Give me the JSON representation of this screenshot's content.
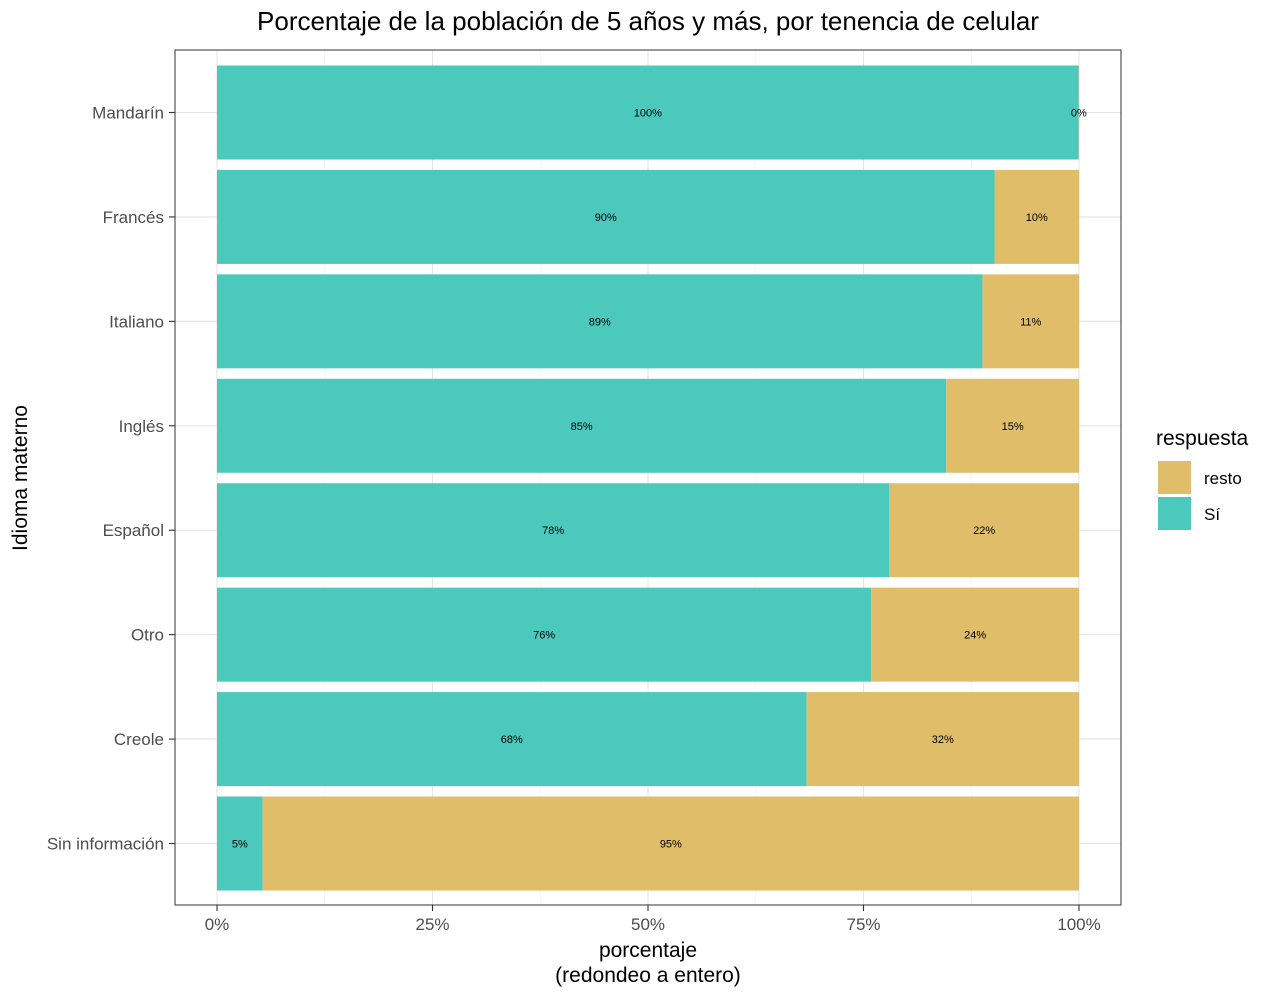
{
  "chart_data": {
    "type": "bar",
    "orientation": "horizontal",
    "stacked": true,
    "title": "Porcentaje de la población de 5 años y más, por tenencia de celular",
    "xlabel_line1": "porcentaje",
    "xlabel_line2": "(redondeo a entero)",
    "ylabel": "Idioma materno",
    "xlim": [
      0,
      1
    ],
    "x_ticks": [
      {
        "value": 0,
        "label": "0%"
      },
      {
        "value": 0.25,
        "label": "25%"
      },
      {
        "value": 0.5,
        "label": "50%"
      },
      {
        "value": 0.75,
        "label": "75%"
      },
      {
        "value": 1,
        "label": "100%"
      }
    ],
    "grid": true,
    "legend_position": "right",
    "categories": [
      "Mandarín",
      "Francés",
      "Italiano",
      "Inglés",
      "Español",
      "Otro",
      "Creole",
      "Sin información"
    ],
    "series": [
      {
        "name": "Sí",
        "color": "#4CC9BD",
        "values": [
          0.9996,
          0.902,
          0.888,
          0.846,
          0.78,
          0.759,
          0.684,
          0.053
        ],
        "labels": [
          "100%",
          "90%",
          "89%",
          "85%",
          "78%",
          "76%",
          "68%",
          "5%"
        ]
      },
      {
        "name": "resto",
        "color": "#E0BE69",
        "values": [
          0.0004,
          0.098,
          0.112,
          0.154,
          0.22,
          0.241,
          0.316,
          0.947
        ],
        "labels": [
          "0%",
          "10%",
          "11%",
          "15%",
          "22%",
          "24%",
          "32%",
          "95%"
        ]
      }
    ],
    "legend": {
      "title": "respuesta",
      "items": [
        {
          "name": "resto",
          "color": "#E0BE69"
        },
        {
          "name": "Sí",
          "color": "#4CC9BD"
        }
      ]
    }
  }
}
